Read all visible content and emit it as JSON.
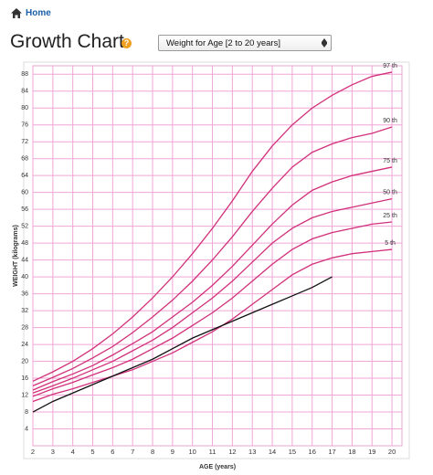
{
  "header": {
    "home": "Home",
    "title": "Growth Chart",
    "help": "?",
    "select": "Weight for Age [2 to 20 years]"
  },
  "chart_data": {
    "type": "line",
    "x_label": "AGE (years)",
    "y_label": "WEIGHT (kilograms)",
    "x": [
      2,
      3,
      4,
      5,
      6,
      7,
      8,
      9,
      10,
      11,
      12,
      13,
      14,
      15,
      16,
      17,
      18,
      19,
      20
    ],
    "xlim": [
      2,
      20.5
    ],
    "xticks": [
      2,
      3,
      4,
      5,
      6,
      7,
      8,
      9,
      10,
      11,
      12,
      13,
      14,
      15,
      16,
      17,
      18,
      19,
      20
    ],
    "ylim": [
      0,
      90
    ],
    "yticks": [
      4,
      8,
      12,
      16,
      20,
      24,
      28,
      32,
      36,
      40,
      44,
      48,
      52,
      56,
      60,
      64,
      68,
      72,
      76,
      80,
      84,
      88
    ],
    "grid": true,
    "series": [
      {
        "name": "97 th",
        "color": "#d1307a",
        "values": [
          15.3,
          17.5,
          20,
          23,
          26.5,
          30.5,
          35,
          40,
          45.5,
          51.5,
          58,
          65,
          71,
          76,
          80,
          83,
          85.5,
          87.5,
          88.5
        ]
      },
      {
        "name": "90 th",
        "color": "#d1307a",
        "values": [
          14.2,
          16.2,
          18.3,
          20.8,
          23.5,
          26.8,
          30.5,
          34.5,
          39,
          44,
          49.5,
          55.5,
          61,
          66,
          69.5,
          71.5,
          73,
          74,
          75.5
        ]
      },
      {
        "name": "75 th",
        "color": "#d1307a",
        "values": [
          13.2,
          15.2,
          17,
          19,
          21.5,
          24.2,
          27,
          30.5,
          34,
          38,
          42.5,
          47.5,
          52.5,
          57,
          60.5,
          62.5,
          64,
          65,
          66
        ]
      },
      {
        "name": "50 th",
        "color": "#d1307a",
        "values": [
          12.5,
          14.2,
          16,
          18,
          20,
          22.5,
          25,
          28,
          31.5,
          35,
          39,
          43.5,
          48,
          51.5,
          54,
          55.5,
          56.5,
          57.5,
          58.5
        ]
      },
      {
        "name": "25 th",
        "color": "#d1307a",
        "values": [
          11.7,
          13.5,
          15,
          16.8,
          18.5,
          20.5,
          23,
          25.5,
          28.5,
          31.5,
          35,
          39,
          43,
          46.5,
          49,
          50.5,
          51.5,
          52.5,
          53
        ]
      },
      {
        "name": "5 th",
        "color": "#d1307a",
        "values": [
          10.5,
          12.2,
          13.5,
          15,
          16.5,
          18,
          20,
          22,
          24.5,
          27,
          30,
          33.5,
          37,
          40.5,
          43,
          44.5,
          45.5,
          46,
          46.5
        ]
      },
      {
        "color": "#111111",
        "x": [
          2,
          3,
          4,
          5,
          6,
          7,
          8,
          9,
          10,
          11,
          12,
          13,
          14,
          15,
          16,
          17
        ],
        "values": [
          8,
          10.5,
          12.5,
          14.5,
          16.5,
          18.5,
          20.5,
          23,
          25.5,
          27.5,
          29.5,
          31.5,
          33.5,
          35.5,
          37.5,
          40
        ]
      }
    ]
  }
}
